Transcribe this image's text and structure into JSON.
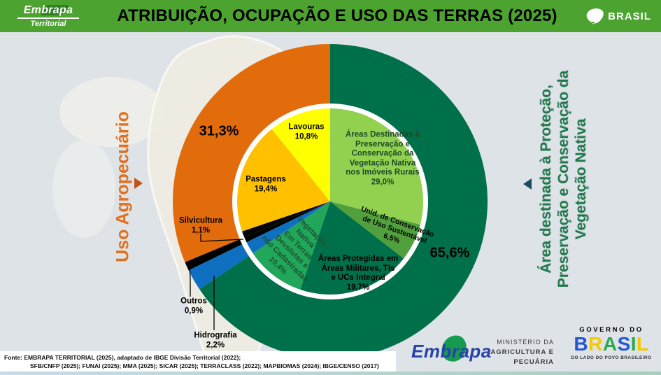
{
  "colors": {
    "header_green": "#4CA330",
    "background": "#DEE3E7",
    "land": "#EFEDE2",
    "agro_orange": "#E26B0C",
    "protect_dark_green": "#00704A",
    "left_label_orange": "#E0701E",
    "right_label_green": "#1E7A4C",
    "blue_water": "#0F6FC0",
    "black_other": "#000000"
  },
  "header": {
    "logo_top": "Embrapa",
    "logo_bottom": "Territorial",
    "title": "ATRIBUIÇÃO, OCUPAÇÃO E USO DAS TERRAS (2025)",
    "brand": "BRASIL"
  },
  "side_labels": {
    "left": {
      "text": "Uso Agropecuário",
      "pct": "31,3%"
    },
    "right": {
      "text": "Área destinada à Proteção,\nPreservação e Conservação da\nVegetação Nativa",
      "pct": "65,6%"
    }
  },
  "chart_data": {
    "type": "pie",
    "title": "Atribuição, ocupação e uso das terras do Brasil (2025)",
    "units": "percent of territory",
    "direction": "clockwise",
    "start_angle_deg": 0,
    "outer_ring": [
      {
        "id": "protecao",
        "name": "Área destinada à Proteção, Preservação e Conservação da Vegetação Nativa",
        "value": 65.6,
        "color": "#00704A"
      },
      {
        "id": "hidrografia",
        "name": "Hidrografia",
        "value": 2.2,
        "color": "#0F6FC0"
      },
      {
        "id": "outros",
        "name": "Outros",
        "value": 0.9,
        "color": "#000000"
      },
      {
        "id": "agropecuario",
        "name": "Uso Agropecuário",
        "value": 31.3,
        "color": "#E26B0C"
      }
    ],
    "inner_ring": [
      {
        "id": "destinadas",
        "name": "Áreas Destinadas à Preservação e Conservação da Vegetação Nativa nos Imóveis Rurais",
        "value": 29.0,
        "color": "#92D050"
      },
      {
        "id": "unidades",
        "name": "Unid. de Conservação de Uso Sustentável",
        "value": 6.5,
        "color": "#52A03D"
      },
      {
        "id": "protegidas",
        "name": "Áreas Protegidas em Áreas Militares, TIs e UCs Integral",
        "value": 19.7,
        "color": "#00704A"
      },
      {
        "id": "vegetacao-devolutas",
        "name": "Vegetação Nativa Em Terras Devolutas e não Cadastradas",
        "value": 10.4,
        "color": "#21A65A"
      },
      {
        "id": "hidrografia",
        "name": "Hidrografia",
        "value": 2.2,
        "color": "#0F6FC0"
      },
      {
        "id": "outros",
        "name": "Outros",
        "value": 0.9,
        "color": "#000000"
      },
      {
        "id": "silvicultura",
        "name": "Silvicultura",
        "value": 1.1,
        "color": "#050505"
      },
      {
        "id": "pastagens",
        "name": "Pastagens",
        "value": 19.4,
        "color": "#FFC000"
      },
      {
        "id": "lavouras",
        "name": "Lavouras",
        "value": 10.8,
        "color": "#FFFF00"
      }
    ]
  },
  "pie_labels": {
    "lavouras": {
      "text": "Lavouras\n10,8%"
    },
    "pastagens": {
      "text": "Pastagens\n19,4%"
    },
    "destinadas": {
      "text": "Áreas Destinadas à\nPreservação e\nConservação da\nVegetação Nativa\nnos Imóveis Rurais\n29,0%"
    },
    "unidades": {
      "text": "Unid. de Conservação\nde Uso Sustentável\n6,5%"
    },
    "protegidas": {
      "text": "Áreas Protegidas em\nÁreas Militares, TIs\ne UCs Integral\n19,7%"
    },
    "vegetacao": {
      "text": "Vegetação\nNativa\nEm Terras\nDevolutas e\nnão Cadastradas\n10,4%"
    },
    "silvicultura": {
      "text": "Silvicultura\n1,1%"
    },
    "outros": {
      "text": "Outros\n0,9%"
    },
    "hidrografia": {
      "text": "Hidrografia\n2,2%"
    }
  },
  "footer": {
    "fonte_line1": "Fonte: EMBRAPA TERRITORIAL (2025), adaptado de IBGE Divisão Territorial (2022);",
    "fonte_line2": "SFB/CNFP (2025); FUNAI (2025); MMA (2025); SICAR (2025); TERRACLASS (2022); MAPBIOMAS (2024); IBGE/CENSO (2017)",
    "embrapa": "Embrapa",
    "ministerio_line1": "MINISTÉRIO DA",
    "ministerio_line2": "AGRICULTURA E",
    "ministerio_line3": "PECUÁRIA",
    "governo": "GOVERNO DO",
    "brasil": "BRASIL",
    "brasil_colors": [
      "#2456D6",
      "#F6C800",
      "#2FA84F",
      "#2456D6",
      "#2FA84F",
      "#F6C800"
    ],
    "slogan": "DO LADO DO POVO BRASILEIRO"
  }
}
